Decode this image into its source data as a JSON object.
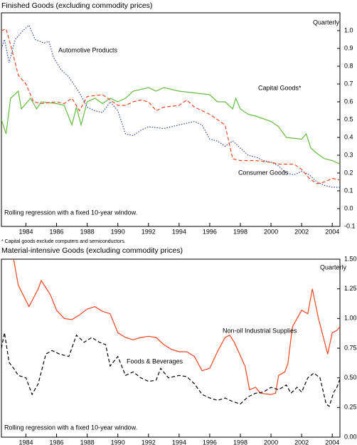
{
  "chart_data": [
    {
      "type": "line",
      "title": "Finished Goods (excluding commodity prices)",
      "annotations": [
        "Quarterly",
        "Automotive Products",
        "Capital Goods*",
        "Consumer Goods",
        "Rolling regression with a fixed 10-year window."
      ],
      "note": "* Capital goods exclude computers and semiconductors.",
      "xlim": [
        1982.4,
        2004.5
      ],
      "xticks": [
        1984,
        1986,
        1988,
        1990,
        1992,
        1994,
        1996,
        1998,
        2000,
        2002,
        2004
      ],
      "ylim": [
        -0.1,
        1.1
      ],
      "yticks": [
        -0.1,
        {
          "value": 0,
          "label": "0.0"
        },
        0.1,
        0.2,
        0.3,
        0.4,
        0.5,
        0.6,
        0.7,
        0.8,
        0.9,
        {
          "value": 1,
          "label": "1.0"
        }
      ],
      "series": [
        {
          "name": "Capital Goods*",
          "color": "#66bb44",
          "style": "solid",
          "x": [
            1982.4,
            1982.7,
            1983,
            1983.5,
            1983.7,
            1984.3,
            1984.7,
            1985,
            1986,
            1986.5,
            1987,
            1987.3,
            1987.6,
            1988,
            1988.5,
            1989,
            1989.5,
            1990,
            1990.5,
            1991,
            1992,
            1992.5,
            1993,
            1994,
            1995,
            1996,
            1996.5,
            1997,
            1997.5,
            1997.7,
            1998,
            1998.5,
            1999,
            2000,
            2000.5,
            2001,
            2002,
            2002.3,
            2002.6,
            2003,
            2003.5,
            2004,
            2004.5
          ],
          "values": [
            0.5,
            0.42,
            0.62,
            0.66,
            0.56,
            0.62,
            0.56,
            0.6,
            0.59,
            0.58,
            0.47,
            0.57,
            0.47,
            0.6,
            0.62,
            0.59,
            0.62,
            0.6,
            0.62,
            0.66,
            0.68,
            0.66,
            0.68,
            0.66,
            0.65,
            0.64,
            0.6,
            0.6,
            0.56,
            0.62,
            0.56,
            0.53,
            0.52,
            0.49,
            0.46,
            0.4,
            0.39,
            0.42,
            0.34,
            0.31,
            0.28,
            0.27,
            0.25
          ]
        },
        {
          "name": "Automotive Products",
          "color": "#3344aa",
          "style": "dotted",
          "x": [
            1982.4,
            1982.6,
            1982.9,
            1983.3,
            1983.8,
            1984.2,
            1984.6,
            1985.2,
            1985.5,
            1985.8,
            1986.3,
            1986.8,
            1987.5,
            1988,
            1988.5,
            1989,
            1989.5,
            1990,
            1990.5,
            1991,
            1991.5,
            1992,
            1993,
            1994,
            1995,
            1995.5,
            1996,
            1996.5,
            1997,
            1997.5,
            1998,
            1998.5,
            1999,
            1999.5,
            2000,
            2000.5,
            2001,
            2001.5,
            2002,
            2002.5,
            2003,
            2003.5,
            2004,
            2004.5
          ],
          "values": [
            0.9,
            0.95,
            0.82,
            0.95,
            1.0,
            1.03,
            0.95,
            0.93,
            0.94,
            0.85,
            0.78,
            0.74,
            0.65,
            0.57,
            0.55,
            0.54,
            0.6,
            0.55,
            0.42,
            0.41,
            0.44,
            0.46,
            0.45,
            0.47,
            0.49,
            0.47,
            0.39,
            0.38,
            0.35,
            0.38,
            0.34,
            0.3,
            0.29,
            0.27,
            0.26,
            0.24,
            0.2,
            0.19,
            0.21,
            0.19,
            0.15,
            0.13,
            0.12,
            0.12
          ]
        },
        {
          "name": "Consumer Goods",
          "color": "#ee4422",
          "style": "dashed",
          "x": [
            1982.4,
            1982.7,
            1983,
            1983.5,
            1984,
            1984.5,
            1985,
            1986,
            1986.5,
            1987,
            1987.5,
            1988,
            1989,
            1989.5,
            1990,
            1990.5,
            1991,
            1991.5,
            1992,
            1992.5,
            1993,
            1994,
            1994.5,
            1995,
            1996,
            1996.5,
            1997,
            1997.5,
            1998,
            1999,
            2000,
            2000.5,
            2001.5,
            2002,
            2002.5,
            2003,
            2003.5,
            2004,
            2004.5
          ],
          "values": [
            1.0,
            1.01,
            0.92,
            0.75,
            0.7,
            0.6,
            0.59,
            0.6,
            0.59,
            0.62,
            0.55,
            0.63,
            0.64,
            0.61,
            0.58,
            0.58,
            0.6,
            0.61,
            0.6,
            0.55,
            0.57,
            0.58,
            0.61,
            0.57,
            0.53,
            0.5,
            0.47,
            0.28,
            0.27,
            0.27,
            0.26,
            0.25,
            0.25,
            0.22,
            0.17,
            0.14,
            0.15,
            0.17,
            0.16
          ]
        }
      ]
    },
    {
      "type": "line",
      "title": "Material-intensive Goods (excluding commodity prices)",
      "annotations": [
        "Quarterly",
        "Non-oil Industrial Supplies",
        "Foods & Beverages",
        "Rolling regression with a fixed 10-year window."
      ],
      "xlim": [
        1982.4,
        2004.5
      ],
      "xticks": [
        1984,
        1986,
        1988,
        1990,
        1992,
        1994,
        1996,
        1998,
        2000,
        2002,
        2004
      ],
      "ylim": [
        0,
        1.5
      ],
      "yticks": [
        {
          "value": 0,
          "label": "0.00"
        },
        0.25,
        {
          "value": 0.5,
          "label": "0.50"
        },
        0.75,
        {
          "value": 1,
          "label": "1.00"
        },
        1.25,
        {
          "value": 1.5,
          "label": "1.50"
        }
      ],
      "series": [
        {
          "name": "Non-oil Industrial Supplies",
          "color": "#ee4422",
          "style": "solid",
          "x": [
            1983.2,
            1983.5,
            1984.2,
            1984.8,
            1985.0,
            1985.6,
            1986,
            1986.5,
            1987,
            1987.5,
            1988,
            1988.5,
            1989,
            1989.5,
            1990,
            1990.5,
            1991,
            1991.5,
            1992,
            1992.5,
            1993,
            1993.5,
            1994,
            1994.5,
            1995,
            1995.5,
            1996,
            1996.5,
            1997,
            1997.3,
            1997.6,
            1998.3,
            1998.6,
            1999,
            1999.3,
            2000,
            2000.3,
            2000.5,
            2000.9,
            2001.1,
            2001.4,
            2002.0,
            2002.4,
            2002.7,
            2003.1,
            2003.7,
            2004.0,
            2004.3,
            2004.5
          ],
          "values": [
            1.5,
            1.28,
            1.1,
            1.25,
            1.32,
            1.2,
            1.07,
            1.0,
            0.99,
            1.03,
            1.08,
            1.1,
            1.06,
            1.04,
            0.88,
            0.84,
            0.82,
            0.84,
            0.85,
            0.84,
            0.78,
            0.74,
            0.72,
            0.72,
            0.68,
            0.56,
            0.58,
            0.72,
            0.84,
            0.86,
            0.8,
            0.6,
            0.4,
            0.42,
            0.37,
            0.36,
            0.37,
            0.52,
            0.55,
            0.62,
            0.93,
            1.07,
            1.04,
            1.25,
            1.0,
            0.7,
            0.88,
            0.9,
            0.93
          ]
        },
        {
          "name": "Foods & Beverages",
          "color": "#000000",
          "style": "dashed",
          "x": [
            1982.4,
            1982.6,
            1982.9,
            1983.2,
            1983.5,
            1984,
            1984.4,
            1984.8,
            1985.3,
            1985.7,
            1986.2,
            1986.8,
            1987.3,
            1987.8,
            1988.3,
            1988.8,
            1989.2,
            1989.5,
            1990,
            1990.5,
            1991,
            1991.5,
            1992,
            1992.5,
            1992.8,
            1993.3,
            1994,
            1994.5,
            1995,
            1995.5,
            1996,
            1996.5,
            1997,
            1997.5,
            1998,
            1998.5,
            1999,
            1999.5,
            2000,
            2000.5,
            2001,
            2001.3,
            2001.7,
            2002,
            2002.4,
            2002.8,
            2003.2,
            2003.6,
            2003.8,
            2004.1,
            2004.3,
            2004.5
          ],
          "values": [
            0.75,
            0.88,
            0.63,
            0.58,
            0.52,
            0.5,
            0.36,
            0.45,
            0.7,
            0.73,
            0.7,
            0.68,
            0.86,
            0.8,
            0.84,
            0.8,
            0.78,
            0.6,
            0.68,
            0.52,
            0.55,
            0.5,
            0.47,
            0.48,
            0.58,
            0.5,
            0.52,
            0.51,
            0.45,
            0.36,
            0.33,
            0.31,
            0.33,
            0.3,
            0.28,
            0.34,
            0.37,
            0.38,
            0.42,
            0.4,
            0.44,
            0.37,
            0.42,
            0.38,
            0.5,
            0.54,
            0.5,
            0.28,
            0.26,
            0.38,
            0.42,
            0.49
          ]
        }
      ]
    }
  ]
}
